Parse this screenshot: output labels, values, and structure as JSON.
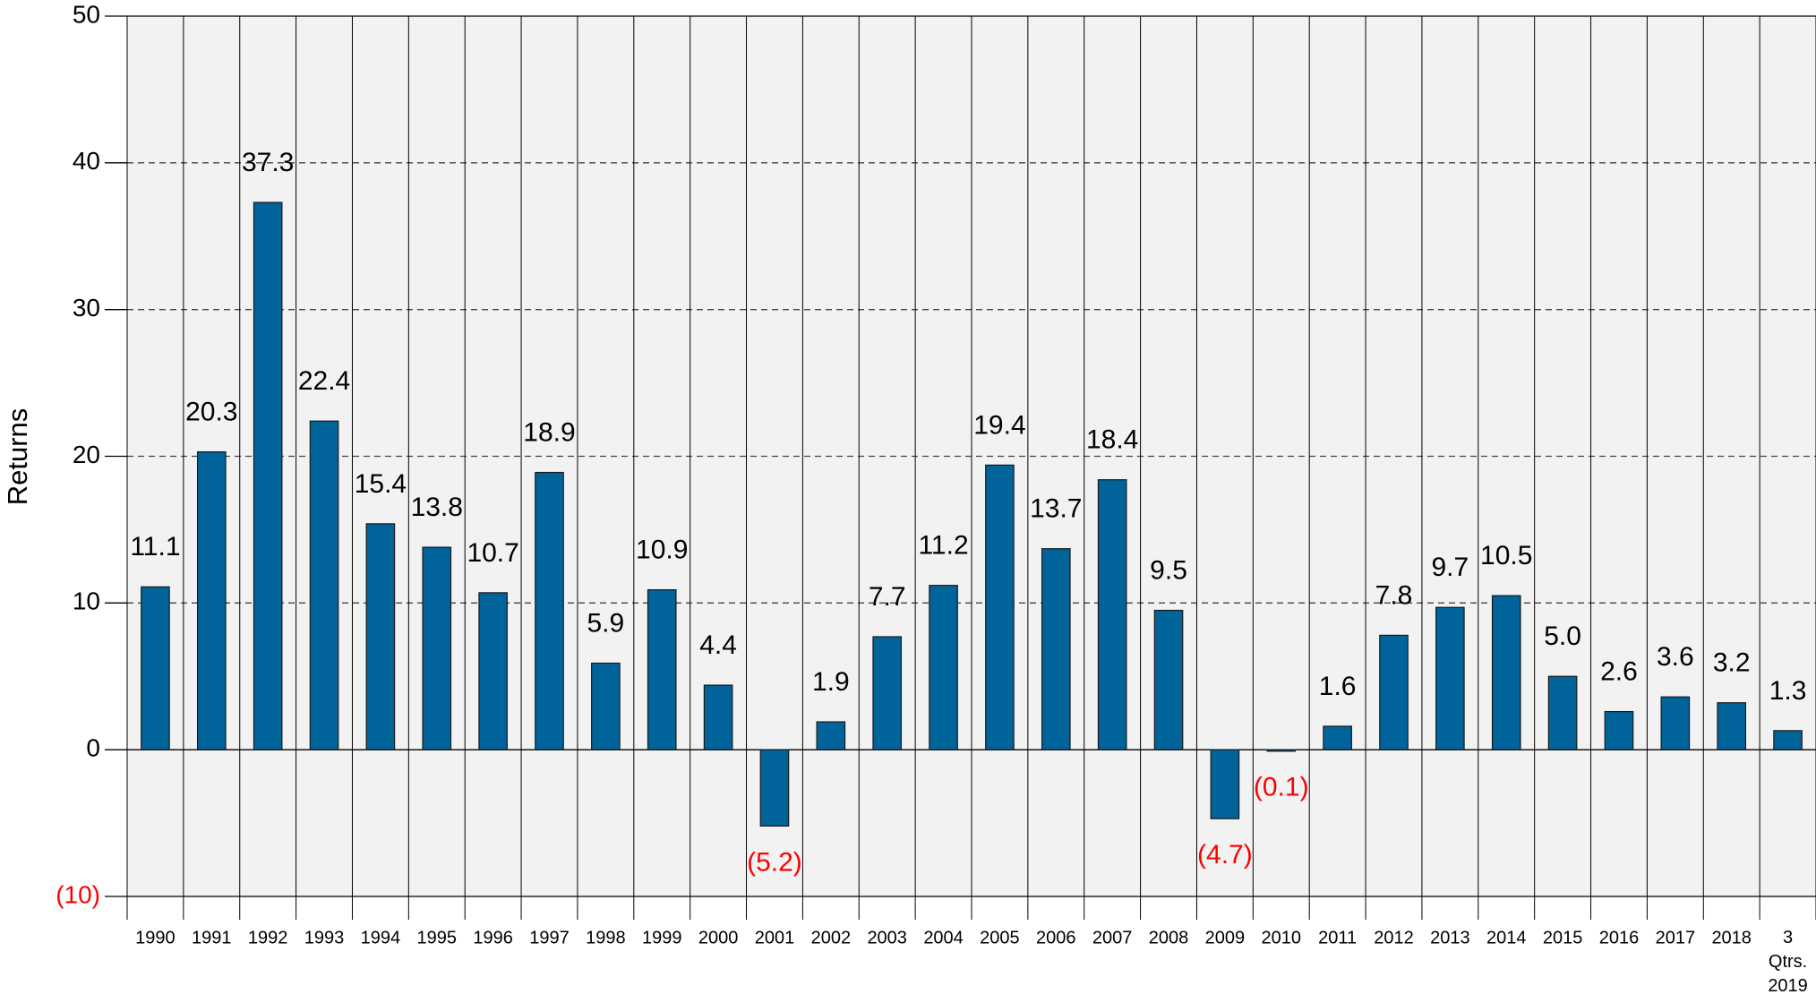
{
  "chart_data": {
    "type": "bar",
    "y_label": "Returns",
    "categories": [
      "1990",
      "1991",
      "1992",
      "1993",
      "1994",
      "1995",
      "1996",
      "1997",
      "1998",
      "1999",
      "2000",
      "2001",
      "2002",
      "2003",
      "2004",
      "2005",
      "2006",
      "2007",
      "2008",
      "2009",
      "2010",
      "2011",
      "2012",
      "2013",
      "2014",
      "2015",
      "2016",
      "2017",
      "2018",
      "3 Qtrs. 2019"
    ],
    "values": [
      11.1,
      20.3,
      37.3,
      22.4,
      15.4,
      13.8,
      10.7,
      18.9,
      5.9,
      10.9,
      4.4,
      -5.2,
      1.9,
      7.7,
      11.2,
      19.4,
      13.7,
      18.4,
      9.5,
      -4.7,
      -0.1,
      1.6,
      7.8,
      9.7,
      10.5,
      5.0,
      2.6,
      3.6,
      3.2,
      1.3
    ],
    "value_labels": [
      "11.1",
      "20.3",
      "37.3",
      "22.4",
      "15.4",
      "13.8",
      "10.7",
      "18.9",
      "5.9",
      "10.9",
      "4.4",
      "(5.2)",
      "1.9",
      "7.7",
      "11.2",
      "19.4",
      "13.7",
      "18.4",
      "9.5",
      "(4.7)",
      "(0.1)",
      "1.6",
      "7.8",
      "9.7",
      "10.5",
      "5.0",
      "2.6",
      "3.6",
      "3.2",
      "1.3"
    ],
    "color": "#00639a",
    "negative_color": "#ff0000",
    "ylim": [
      -10,
      50
    ],
    "yticks": [
      {
        "value": -10,
        "label": "(10)"
      },
      0,
      10,
      20,
      30,
      40,
      50
    ],
    "grid": true
  }
}
